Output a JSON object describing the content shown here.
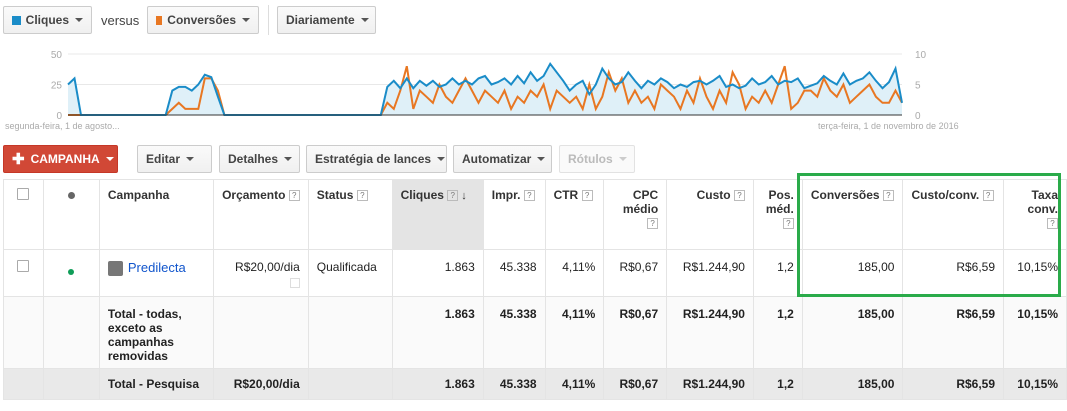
{
  "controls": {
    "metric1": {
      "label": "Cliques",
      "color": "#1a8cc8"
    },
    "versus": "versus",
    "metric2": {
      "label": "Conversões",
      "color": "#e87722"
    },
    "period": "Diariamente"
  },
  "chart": {
    "left_ticks": [
      "50",
      "25",
      "0"
    ],
    "right_ticks": [
      "10",
      "5",
      "0"
    ],
    "start_label": "segunda-feira, 1 de agosto...",
    "end_label": "terça-feira, 1 de novembro de 2016"
  },
  "chart_data": {
    "type": "line",
    "ylim_left": [
      0,
      50
    ],
    "ylim_right": [
      0,
      10
    ],
    "series": [
      {
        "name": "Cliques",
        "axis": "left",
        "color": "#1a8cc8",
        "values": [
          25,
          30,
          0,
          0,
          0,
          0,
          0,
          0,
          0,
          0,
          0,
          0,
          0,
          0,
          0,
          0,
          20,
          23,
          23,
          20,
          25,
          33,
          31,
          15,
          0,
          0,
          0,
          0,
          0,
          0,
          0,
          0,
          0,
          0,
          0,
          0,
          0,
          0,
          0,
          0,
          0,
          0,
          0,
          0,
          0,
          0,
          0,
          0,
          0,
          23,
          28,
          22,
          30,
          22,
          28,
          24,
          28,
          23,
          25,
          30,
          25,
          28,
          25,
          30,
          32,
          25,
          27,
          30,
          25,
          32,
          26,
          35,
          28,
          32,
          42,
          35,
          28,
          20,
          25,
          28,
          17,
          25,
          38,
          30,
          25,
          27,
          35,
          28,
          22,
          28,
          25,
          30,
          27,
          22,
          25,
          23,
          27,
          28,
          25,
          28,
          32,
          23,
          25,
          22,
          24,
          30,
          25,
          27,
          32,
          25,
          28,
          27,
          30,
          22,
          24,
          26,
          32,
          28,
          25,
          34,
          25,
          28,
          30,
          35,
          28,
          22,
          27,
          38,
          10
        ]
      },
      {
        "name": "Conversões",
        "axis": "right",
        "color": "#e87722",
        "values": [
          0,
          0,
          0,
          0,
          0,
          0,
          0,
          0,
          0,
          0,
          0,
          0,
          0,
          0,
          0,
          0,
          1,
          2,
          1,
          1,
          1,
          6,
          6,
          4,
          0,
          0,
          0,
          0,
          0,
          0,
          0,
          0,
          0,
          0,
          0,
          0,
          0,
          0,
          0,
          0,
          0,
          0,
          0,
          0,
          0,
          0,
          0,
          0,
          0,
          2,
          1,
          4,
          8,
          1,
          4,
          3,
          2,
          5,
          3,
          2,
          4,
          6,
          4,
          2,
          4,
          3,
          2,
          4,
          1,
          3,
          2,
          4,
          3,
          5,
          1,
          4,
          3,
          2,
          3,
          1,
          5,
          1,
          3,
          7,
          4,
          6,
          2,
          4,
          2,
          3,
          1,
          5,
          4,
          3,
          1,
          4,
          2,
          6,
          3,
          1,
          4,
          2,
          7,
          5,
          1,
          3,
          2,
          4,
          2,
          5,
          8,
          1,
          2,
          4,
          4,
          3,
          6,
          4,
          3,
          5,
          2,
          3,
          4,
          5,
          3,
          2,
          2,
          4,
          2
        ]
      }
    ]
  },
  "toolbar": {
    "campanha": "CAMPANHA",
    "editar": "Editar",
    "detalhes": "Detalhes",
    "estrategia": "Estratégia de lances",
    "automatizar": "Automatizar",
    "rotulos": "Rótulos"
  },
  "table": {
    "headers": {
      "campanha": "Campanha",
      "orcamento": "Orçamento",
      "status": "Status",
      "cliques": "Cliques",
      "impr": "Impr.",
      "ctr": "CTR",
      "cpc": "CPC médio",
      "custo": "Custo",
      "pos": "Pos. méd.",
      "conversoes": "Conversões",
      "custo_conv": "Custo/conv.",
      "taxa": "Taxa conv."
    },
    "help": "?",
    "sort_arrow": "↓",
    "rows": [
      {
        "campanha": "Predilecta",
        "orcamento": "R$20,00/dia",
        "status": "Qualificada",
        "cliques": "1.863",
        "impr": "45.338",
        "ctr": "4,11%",
        "cpc": "R$0,67",
        "custo": "R$1.244,90",
        "pos": "1,2",
        "conversoes": "185,00",
        "custo_conv": "R$6,59",
        "taxa": "10,15%"
      },
      {
        "campanha": "Total - todas, exceto as campanhas removidas",
        "orcamento": "",
        "status": "",
        "cliques": "1.863",
        "impr": "45.338",
        "ctr": "4,11%",
        "cpc": "R$0,67",
        "custo": "R$1.244,90",
        "pos": "1,2",
        "conversoes": "185,00",
        "custo_conv": "R$6,59",
        "taxa": "10,15%"
      },
      {
        "campanha": "Total - Pesquisa",
        "orcamento": "R$20,00/dia",
        "status": "",
        "cliques": "1.863",
        "impr": "45.338",
        "ctr": "4,11%",
        "cpc": "R$0,67",
        "custo": "R$1.244,90",
        "pos": "1,2",
        "conversoes": "185,00",
        "custo_conv": "R$6,59",
        "taxa": "10,15%"
      }
    ]
  }
}
